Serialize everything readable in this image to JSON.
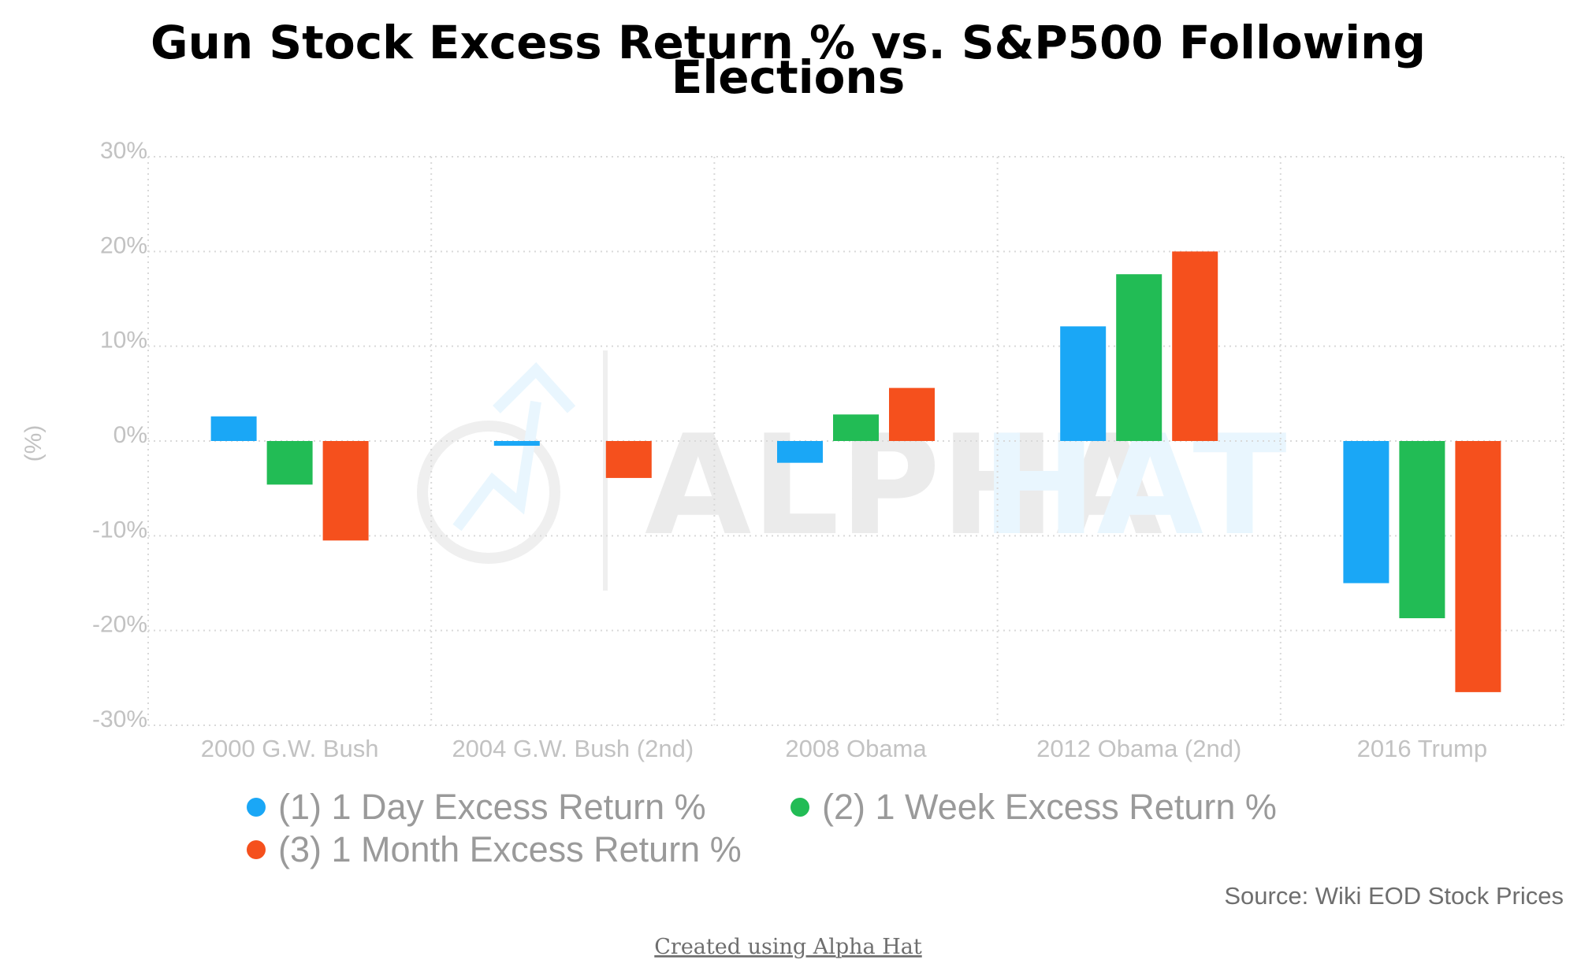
{
  "colors": {
    "series_1": "#1aa7f6",
    "series_2": "#22bc55",
    "series_3": "#f5501d",
    "grid": "#d9d9d9",
    "tick_text": "#c2c2c2",
    "legend_text": "#9a9a9a"
  },
  "chart_data": {
    "type": "bar",
    "title": "Gun Stock Excess Return % vs. S&P500 Following Elections",
    "ylabel": "(%)",
    "xlabel": "",
    "ylim": [
      -30,
      30
    ],
    "yticks": [
      30,
      20,
      10,
      0,
      -10,
      -20,
      -30
    ],
    "ytick_labels": [
      "30%",
      "20%",
      "10%",
      "0%",
      "-10%",
      "-20%",
      "-30%"
    ],
    "categories": [
      "2000 G.W. Bush",
      "2004 G.W. Bush (2nd)",
      "2008 Obama",
      "2012 Obama (2nd)",
      "2016 Trump"
    ],
    "series": [
      {
        "name": "(1) 1 Day Excess Return %",
        "values": [
          2.6,
          -0.5,
          -2.3,
          12.1,
          -15.0
        ]
      },
      {
        "name": "(2) 1 Week Excess Return %",
        "values": [
          -4.6,
          0,
          2.8,
          17.6,
          -18.7
        ]
      },
      {
        "name": "(3) 1 Month Excess Return %",
        "values": [
          -10.5,
          -3.9,
          5.6,
          20.0,
          -26.5
        ]
      }
    ],
    "grid": true,
    "legend_position": "bottom"
  },
  "source": "Source: Wiki EOD Stock Prices",
  "credit": "Created using Alpha Hat",
  "watermark": {
    "word1": "ALPHA",
    "word2": "HAT"
  }
}
